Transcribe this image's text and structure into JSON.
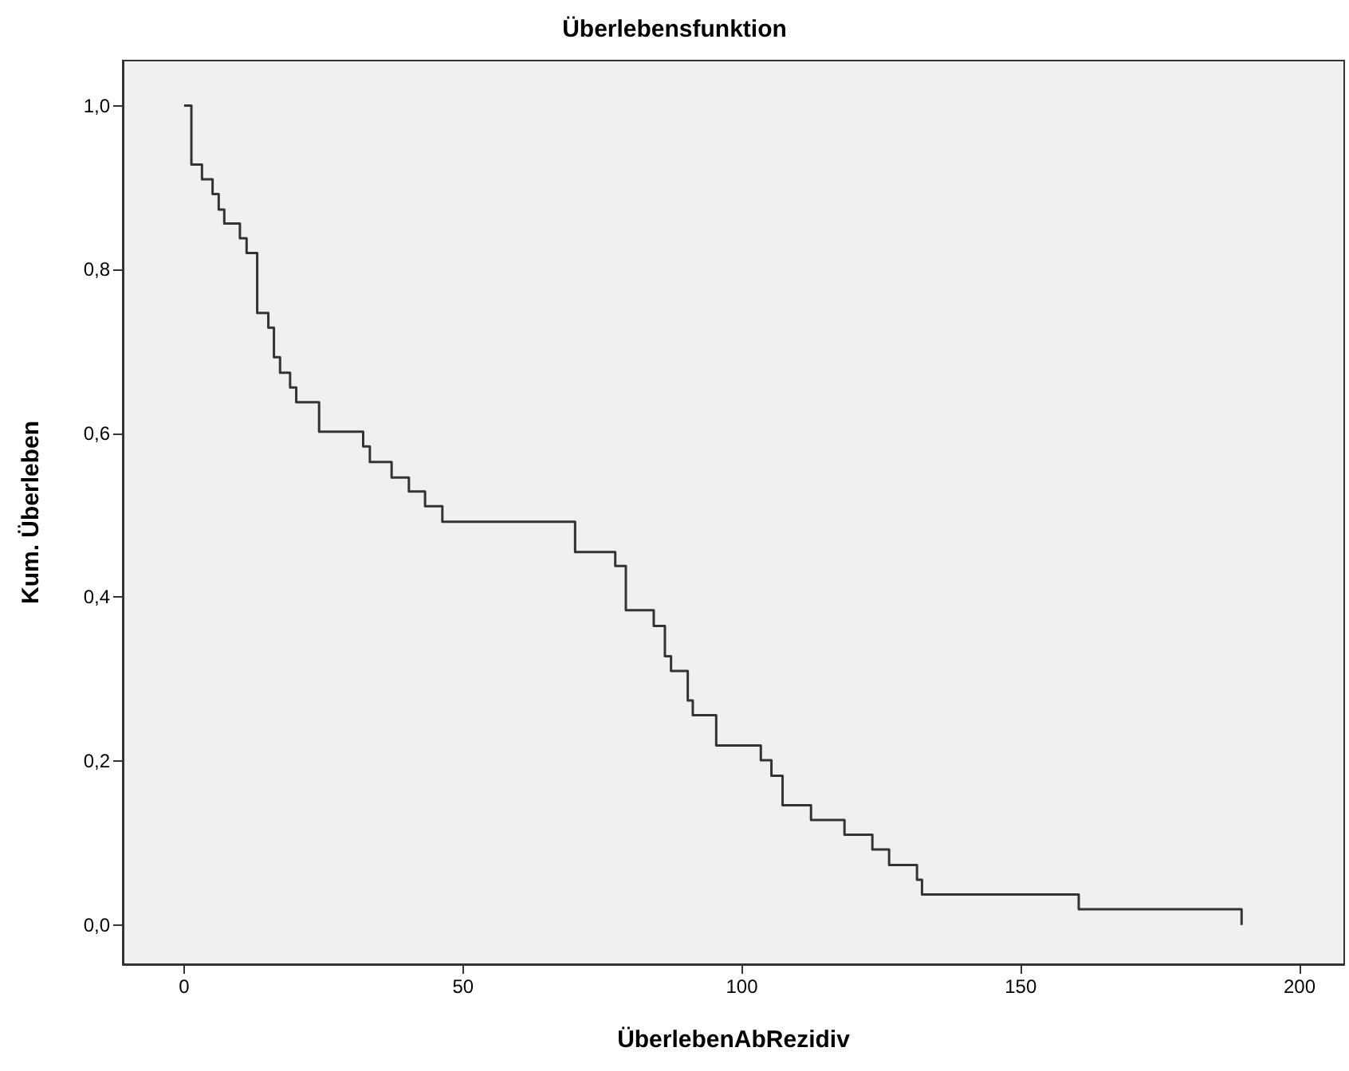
{
  "chart_data": {
    "type": "step",
    "title": "Überlebensfunktion",
    "xlabel": "ÜberlebenAbRezidiv",
    "ylabel": "Kum. Überleben",
    "x": [
      0,
      1.3,
      3.2,
      5.1,
      6.2,
      7.2,
      10.0,
      11.2,
      13.1,
      15.1,
      16.1,
      17.2,
      19.0,
      20.1,
      24.2,
      32.1,
      33.3,
      37.2,
      40.3,
      43.2,
      46.3,
      70.1,
      77.3,
      79.2,
      84.2,
      86.2,
      87.3,
      90.3,
      91.2,
      95.4,
      103.4,
      105.3,
      107.3,
      112.4,
      118.4,
      123.4,
      126.4,
      131.4,
      132.3,
      160.4,
      189.6
    ],
    "series": [
      {
        "color": "#333333",
        "values": [
          1.0,
          0.928,
          0.91,
          0.892,
          0.873,
          0.856,
          0.838,
          0.82,
          0.747,
          0.729,
          0.693,
          0.674,
          0.656,
          0.638,
          0.602,
          0.584,
          0.565,
          0.546,
          0.529,
          0.511,
          0.492,
          0.455,
          0.438,
          0.384,
          0.365,
          0.328,
          0.31,
          0.274,
          0.256,
          0.219,
          0.201,
          0.182,
          0.146,
          0.128,
          0.11,
          0.092,
          0.073,
          0.055,
          0.037,
          0.019,
          0.0
        ]
      }
    ],
    "xlim": [
      -11,
      208
    ],
    "xticks": [
      0,
      50,
      100,
      150,
      200
    ],
    "ylim": [
      -0.048,
      1.055
    ],
    "yticks": [
      {
        "value": 0,
        "label": "0,0"
      },
      {
        "value": 0.2,
        "label": "0,2"
      },
      {
        "value": 0.4,
        "label": "0,4"
      },
      {
        "value": 0.6,
        "label": "0,6"
      },
      {
        "value": 0.8,
        "label": "0,8"
      },
      {
        "value": 1.0,
        "label": "1,0"
      }
    ],
    "grid": false
  }
}
